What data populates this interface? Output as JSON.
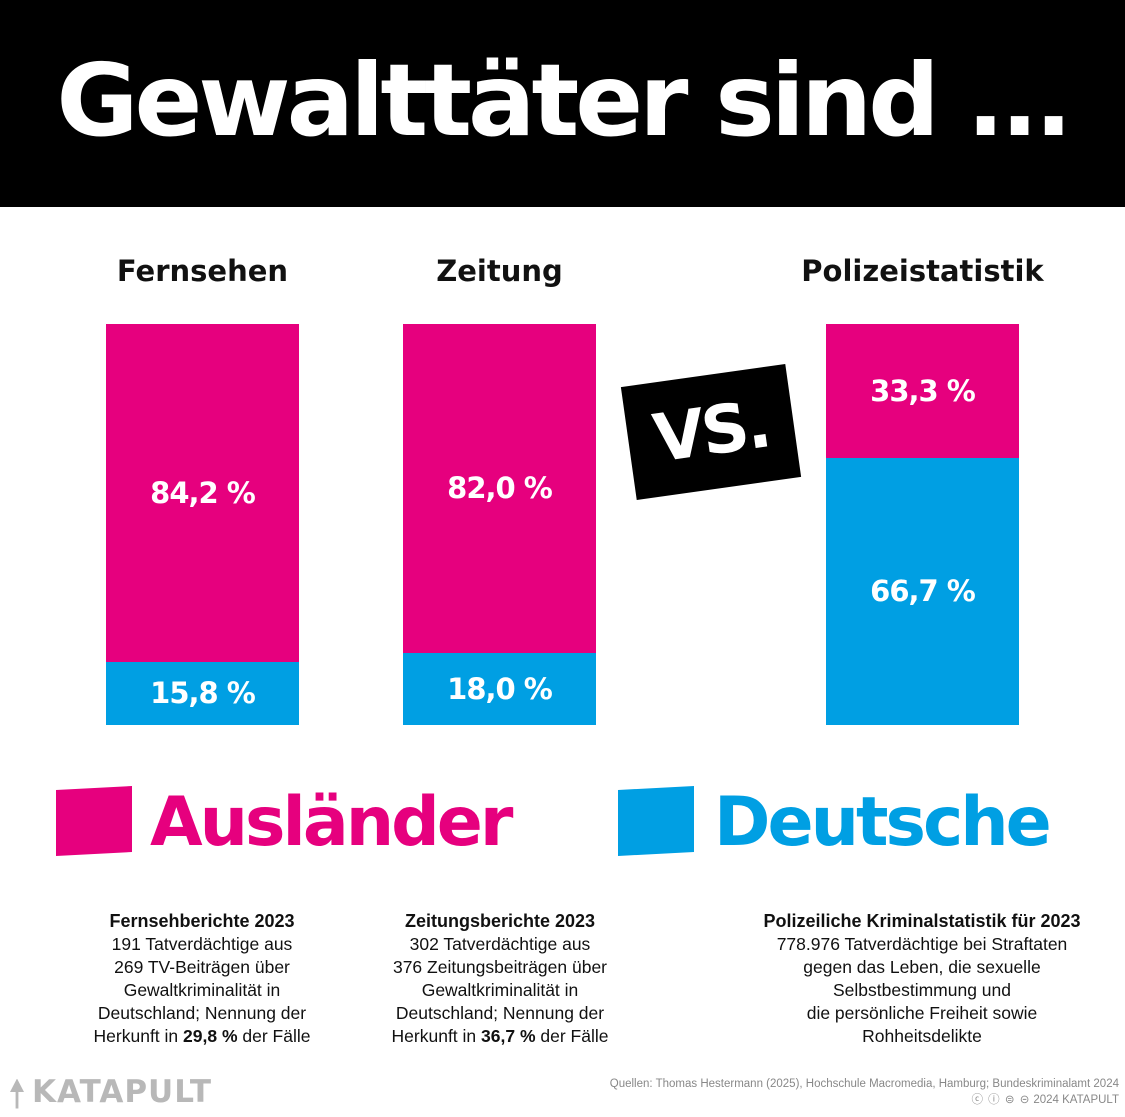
{
  "title": "Gewalttäter sind ...",
  "colors": {
    "auslaender": "#e6007e",
    "deutsche": "#009fe3",
    "header_bg": "#000000"
  },
  "chart_data": {
    "type": "bar",
    "stacked": true,
    "categories": [
      "Fernsehen",
      "Zeitung",
      "Polizeistatistik"
    ],
    "series": [
      {
        "name": "Ausländer",
        "values": [
          84.2,
          82.0,
          33.3
        ],
        "labels": [
          "84,2 %",
          "82,0 %",
          "33,3 %"
        ]
      },
      {
        "name": "Deutsche",
        "values": [
          15.8,
          18.0,
          66.7
        ],
        "labels": [
          "15,8 %",
          "18,0 %",
          "66,7 %"
        ]
      }
    ],
    "ylim": [
      0,
      100
    ]
  },
  "vs_label": "VS.",
  "legend": {
    "auslaender": "Ausländer",
    "deutsche": "Deutsche"
  },
  "notes": [
    {
      "title": "Fernsehberichte 2023",
      "l1": "191 Tatverdächtige aus",
      "l2": "269 TV-Beiträgen über",
      "l3": "Gewaltkriminalität in",
      "l4": "Deutschland; Nennung der",
      "l5a": "Herkunft in ",
      "l5b": "29,8 %",
      "l5c": " der Fälle"
    },
    {
      "title": "Zeitungsberichte 2023",
      "l1": "302 Tatverdächtige aus",
      "l2": "376 Zeitungsbeiträgen über",
      "l3": "Gewaltkriminalität in",
      "l4": "Deutschland; Nennung der",
      "l5a": "Herkunft in ",
      "l5b": "36,7 %",
      "l5c": " der Fälle"
    },
    {
      "title": "Polizeiliche Kriminalstatistik für 2023",
      "l1": "778.976 Tatverdächtige bei Straftaten",
      "l2": "gegen das Leben, die sexuelle",
      "l3": "Selbstbestimmung und",
      "l4": "die persönliche Freiheit sowie",
      "l5": "Rohheitsdelikte"
    }
  ],
  "footer": {
    "logo": "KATAPULT",
    "sources": "Quellen: Thomas Hestermann (2025), Hochschule Macromedia, Hamburg; Bundeskriminalamt 2024",
    "license_icons": "cc-by-nc-nd-icons",
    "copyright": "2024 KATAPULT"
  }
}
